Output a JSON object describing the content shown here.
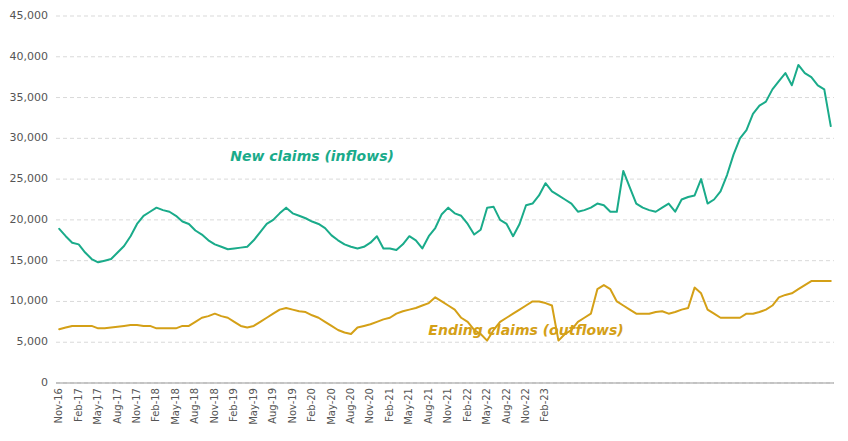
{
  "chart_data": {
    "type": "line",
    "categories": [
      "Nov-16",
      null,
      null,
      "Feb-17",
      null,
      null,
      "May-17",
      null,
      null,
      "Aug-17",
      null,
      null,
      "Nov-17",
      null,
      null,
      "Feb-18",
      null,
      null,
      "May-18",
      null,
      null,
      "Aug-18",
      null,
      null,
      "Nov-18",
      null,
      null,
      "Feb-19",
      null,
      null,
      "May-19",
      null,
      null,
      "Aug-19",
      null,
      null,
      "Nov-19",
      null,
      null,
      "Feb-20",
      null,
      null,
      "May-20",
      null,
      null,
      "Aug-20",
      null,
      null,
      "Nov-20",
      null,
      null,
      "Feb-21",
      null,
      null,
      "May-21",
      null,
      null,
      "Aug-21",
      null,
      null,
      "Nov-21",
      null,
      null,
      "Feb-22",
      null,
      null,
      "May-22",
      null,
      null,
      "Aug-22",
      null,
      null,
      "Nov-22",
      null,
      null,
      "Feb-23",
      null,
      null,
      null,
      null,
      null,
      null,
      null,
      null,
      null,
      null,
      null,
      null,
      null,
      null,
      null,
      null,
      null,
      null,
      null,
      null,
      null,
      null,
      null,
      null,
      null,
      null,
      null,
      null,
      null,
      null,
      null,
      null,
      null,
      null,
      null,
      null,
      null,
      null,
      null,
      null,
      null,
      null,
      null,
      null
    ],
    "series": [
      {
        "color": "#1aab8a",
        "values": [
          18900,
          18000,
          17200,
          17000,
          16000,
          15200,
          14800,
          15000,
          15200,
          16000,
          16800,
          18000,
          19500,
          20500,
          21000,
          21500,
          21200,
          21000,
          20500,
          19800,
          19500,
          18700,
          18200,
          17500,
          17000,
          16700,
          16400,
          16500,
          16600,
          16700,
          17500,
          18500,
          19500,
          20000,
          20800,
          21500,
          20800,
          20500,
          20200,
          19800,
          19500,
          19000,
          18100,
          17500,
          17000,
          16700,
          16500,
          16700,
          17200,
          18000,
          16500,
          16500,
          16300,
          17000,
          18000,
          17500,
          16500,
          18000,
          19000,
          20700,
          21500,
          20800,
          20500,
          19500,
          18200,
          18800,
          21500,
          21600,
          20000,
          19500,
          18000,
          19500,
          21800,
          22000,
          23000,
          24500,
          23500,
          23000,
          22500,
          22000,
          21000,
          21200,
          21500,
          22000,
          21800,
          21000,
          21000,
          26000,
          24000,
          22000,
          21500,
          21200,
          21000,
          21500,
          22000,
          21000,
          22500,
          22800,
          23000,
          25000,
          22000,
          22500,
          23500,
          25500,
          28000,
          30000,
          31000,
          33000,
          34000,
          34500,
          36000,
          37000,
          38000,
          36500,
          39000,
          38000,
          37500,
          36500,
          36000,
          31500
        ]
      },
      {
        "color": "#d4a017",
        "values": [
          6600,
          6800,
          7000,
          7000,
          7000,
          7000,
          6700,
          6700,
          6800,
          6900,
          7000,
          7100,
          7100,
          7000,
          7000,
          6700,
          6700,
          6700,
          6700,
          7000,
          7000,
          7500,
          8000,
          8200,
          8500,
          8200,
          8000,
          7500,
          7000,
          6800,
          7000,
          7500,
          8000,
          8500,
          9000,
          9200,
          9000,
          8800,
          8700,
          8300,
          8000,
          7500,
          7000,
          6500,
          6200,
          6000,
          6800,
          7000,
          7200,
          7500,
          7800,
          8000,
          8500,
          8800,
          9000,
          9200,
          9500,
          9800,
          10500,
          10000,
          9500,
          9000,
          8000,
          7500,
          6500,
          6000,
          5200,
          6500,
          7500,
          8000,
          8500,
          9000,
          9500,
          10000,
          10000,
          9800,
          9500,
          5200,
          6000,
          6500,
          7500,
          8000,
          8500,
          11500,
          12000,
          11500,
          10000,
          9500,
          9000,
          8500,
          8500,
          8500,
          8700,
          8800,
          8500,
          8700,
          9000,
          9200,
          11700,
          11000,
          9000,
          8500,
          8000,
          8000,
          8000,
          8000,
          8500,
          8500,
          8700,
          9000,
          9500,
          10500,
          10800,
          11000,
          11500,
          12000,
          12500,
          12500,
          12500,
          12500
        ]
      }
    ],
    "annotations": [
      {
        "text": "New claims (inflows)",
        "x": "Feb-20",
        "y": 26500,
        "color": "#1aab8a"
      },
      {
        "text": "Ending claims (outflows)",
        "x": "Nov-22",
        "y": 7500,
        "color": "#d4a017"
      }
    ],
    "ylim": [
      0,
      45000
    ],
    "yticks": [
      0,
      {
        "value": 5000,
        "label": "5,000"
      },
      {
        "value": 10000,
        "label": "10,000"
      },
      {
        "value": 15000,
        "label": "15,000"
      },
      {
        "value": 20000,
        "label": "20,000"
      },
      {
        "value": 25000,
        "label": "25,000"
      },
      {
        "value": 30000,
        "label": "30,000"
      },
      {
        "value": 35000,
        "label": "35,000"
      },
      {
        "value": 40000,
        "label": "40,000"
      },
      {
        "value": 45000,
        "label": "45,000"
      }
    ],
    "grid": true
  }
}
